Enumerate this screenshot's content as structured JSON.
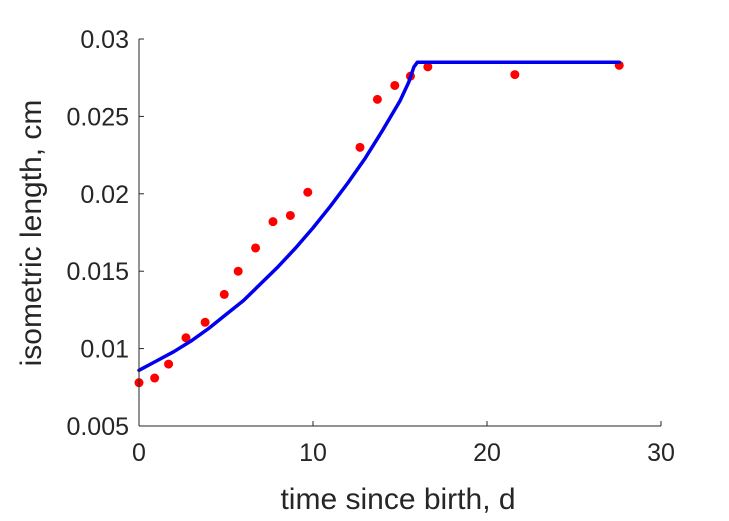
{
  "chart_data": {
    "type": "scatter",
    "xlabel": "time since birth, d",
    "ylabel": "isometric length, cm",
    "xlim": [
      0,
      30
    ],
    "ylim": [
      0.005,
      0.03
    ],
    "xticks": [
      0,
      10,
      20,
      30
    ],
    "xtick_labels": [
      "0",
      "10",
      "20",
      "30"
    ],
    "yticks": [
      0.005,
      0.01,
      0.015,
      0.02,
      0.025,
      0.03
    ],
    "ytick_labels": [
      "0.005",
      "0.01",
      "0.015",
      "0.02",
      "0.025",
      "0.03"
    ],
    "grid": false,
    "series": [
      {
        "kind": "scatter",
        "color": "#ff0000",
        "x": [
          0,
          0.9,
          1.7,
          2.7,
          3.8,
          4.9,
          5.7,
          6.7,
          7.7,
          8.7,
          9.7,
          12.7,
          13.7,
          14.7,
          15.6,
          16.6,
          21.6,
          27.6
        ],
        "y": [
          0.0078,
          0.0081,
          0.009,
          0.0107,
          0.0117,
          0.0135,
          0.015,
          0.0165,
          0.0182,
          0.0186,
          0.0201,
          0.023,
          0.0261,
          0.027,
          0.0276,
          0.0282,
          0.0277,
          0.0283
        ]
      },
      {
        "kind": "line",
        "color": "#0000ee",
        "x": [
          0,
          1,
          2,
          3,
          4,
          5,
          6,
          7,
          8,
          9,
          10,
          11,
          12,
          13,
          14,
          15,
          15.5,
          15.8,
          16,
          20,
          25,
          27.6
        ],
        "y": [
          0.0086,
          0.0092,
          0.0098,
          0.0105,
          0.0113,
          0.0122,
          0.0131,
          0.0142,
          0.0153,
          0.0165,
          0.0178,
          0.0192,
          0.0207,
          0.0223,
          0.0241,
          0.026,
          0.0272,
          0.0282,
          0.0285,
          0.0285,
          0.0285,
          0.0285
        ]
      }
    ]
  }
}
